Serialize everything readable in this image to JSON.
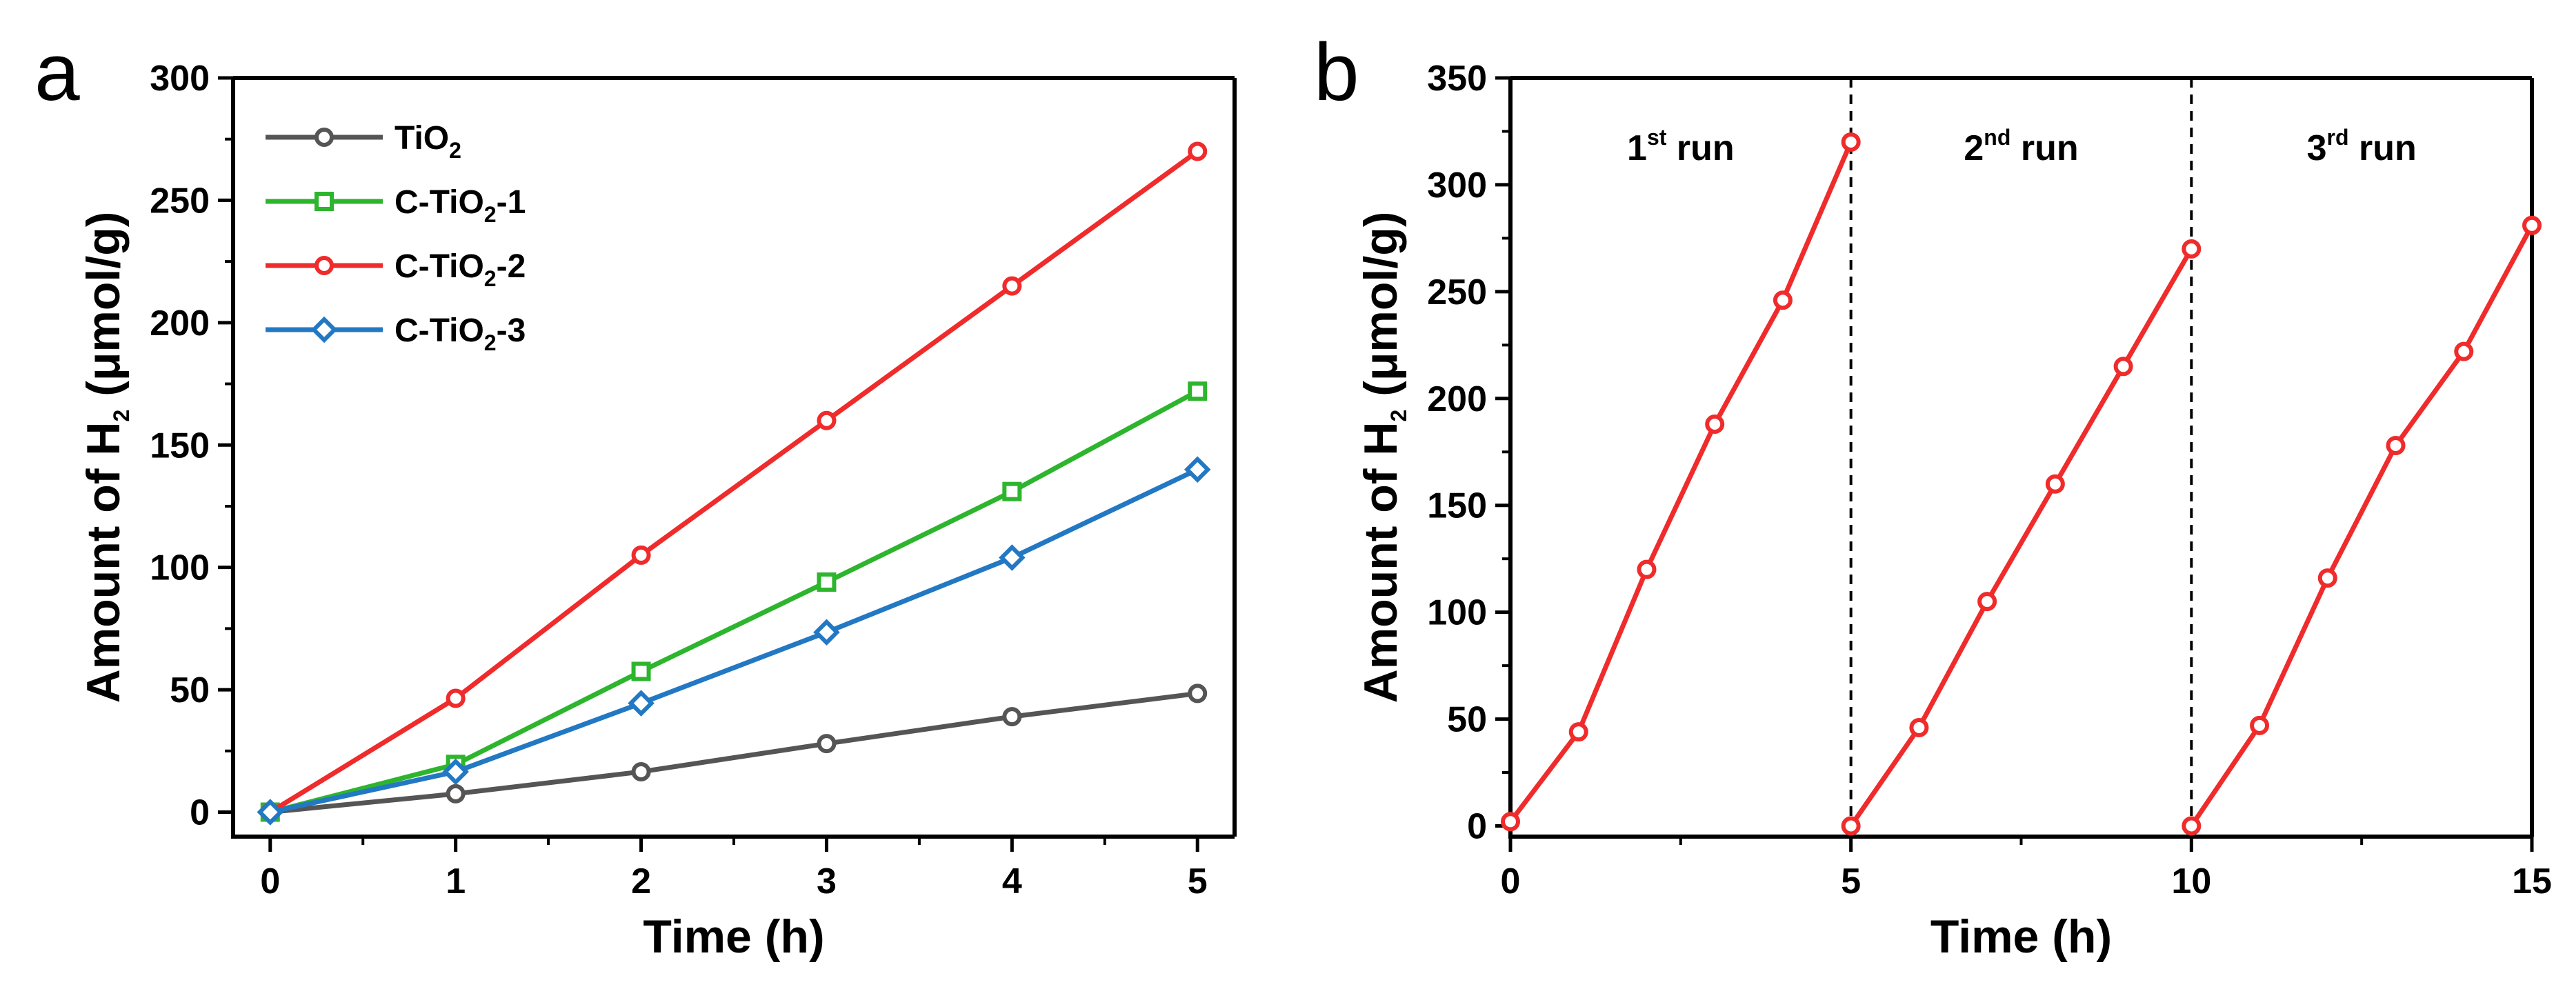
{
  "chart_data": [
    {
      "panel": "a",
      "type": "line",
      "xlabel": "Time (h)",
      "ylabel_prefix": "Amount of H",
      "ylabel_sub": "2",
      "ylabel_suffix": " (μmol/g)",
      "xlim": [
        -0.2,
        5.2
      ],
      "ylim": [
        -10,
        300
      ],
      "xticks": [
        0,
        1,
        2,
        3,
        4,
        5
      ],
      "yticks": [
        0,
        50,
        100,
        150,
        200,
        250,
        300
      ],
      "legend_position": "top-left",
      "x": [
        0,
        1,
        2,
        3,
        4,
        5
      ],
      "series": [
        {
          "name": "TiO",
          "sub": "2",
          "suffix": "",
          "color": "#555555",
          "marker": "circle",
          "values": [
            0,
            7.5,
            16.5,
            28,
            39,
            48.5
          ]
        },
        {
          "name": "C-TiO",
          "sub": "2",
          "suffix": "-1",
          "color": "#2db52d",
          "marker": "square",
          "values": [
            0,
            19.5,
            57.5,
            94,
            131,
            172
          ]
        },
        {
          "name": "C-TiO",
          "sub": "2",
          "suffix": "-2",
          "color": "#ef2b2b",
          "marker": "circle",
          "values": [
            0,
            46.5,
            105,
            160,
            215,
            270
          ]
        },
        {
          "name": "C-TiO",
          "sub": "2",
          "suffix": "-3",
          "color": "#2278c3",
          "marker": "diamond",
          "values": [
            0,
            16.5,
            44.5,
            73.5,
            104,
            140
          ]
        }
      ]
    },
    {
      "panel": "b",
      "type": "line",
      "xlabel": "Time (h)",
      "ylabel_prefix": "Amount of H",
      "ylabel_sub": "2",
      "ylabel_suffix": " (μmol/g)",
      "xlim": [
        0,
        15
      ],
      "ylim": [
        -5,
        350
      ],
      "xticks": [
        0,
        5,
        10,
        15
      ],
      "yticks": [
        0,
        50,
        100,
        150,
        200,
        250,
        300,
        350
      ],
      "dividers_x": [
        5,
        10
      ],
      "runs": [
        {
          "num": "1",
          "sup": "st",
          "word": " run",
          "x_center": 2.5
        },
        {
          "num": "2",
          "sup": "nd",
          "word": " run",
          "x_center": 7.5
        },
        {
          "num": "3",
          "sup": "rd",
          "word": " run",
          "x_center": 12.5
        }
      ],
      "series": [
        {
          "name": "run-1",
          "color": "#ef2b2b",
          "x": [
            0,
            1,
            2,
            3,
            4,
            5
          ],
          "values": [
            2,
            44,
            120,
            188,
            246,
            320
          ]
        },
        {
          "name": "run-2",
          "color": "#ef2b2b",
          "x": [
            5,
            6,
            7,
            8,
            9,
            10
          ],
          "values": [
            0,
            46,
            105,
            160,
            215,
            270
          ]
        },
        {
          "name": "run-3",
          "color": "#ef2b2b",
          "x": [
            10,
            11,
            12,
            13,
            14,
            15
          ],
          "values": [
            0,
            47,
            116,
            178,
            222,
            281
          ]
        }
      ]
    }
  ]
}
